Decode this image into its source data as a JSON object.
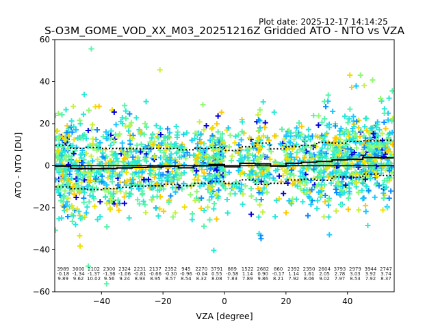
{
  "chart_data": {
    "type": "scatter",
    "title": "S-O3M_GOME_VOD_XX_M03_20251216Z Gridded ATO - NTO vs VZA",
    "plot_date_label": "Plot date: 2025-12-17 14:14:25",
    "xlabel": "VZA [degree]",
    "ylabel": "ATO - NTO [DU]",
    "xlim": [
      -55.2,
      55.2
    ],
    "ylim": [
      -60,
      60
    ],
    "xticks": [
      -40,
      -20,
      0,
      20,
      40
    ],
    "xtick_labels": [
      "−40",
      "−20",
      "0",
      "20",
      "40"
    ],
    "yticks": [
      -60,
      -40,
      -20,
      0,
      20,
      40,
      60
    ],
    "ytick_labels": [
      "−60",
      "−40",
      "−20",
      "0",
      "20",
      "40",
      "60"
    ],
    "grid": false,
    "marker": "plus",
    "colormap": [
      "#0000d8",
      "#0a8cff",
      "#18c8ff",
      "#28e8d8",
      "#58f4a8",
      "#90f870",
      "#c8f040",
      "#f0e000",
      "#ffc800"
    ],
    "zero_line": 0,
    "bin_width": 5,
    "bins": {
      "centers": [
        -52.5,
        -47.5,
        -42.5,
        -37.5,
        -32.5,
        -27.5,
        -22.5,
        -17.5,
        -12.5,
        -7.5,
        -2.5,
        2.5,
        7.5,
        12.5,
        17.5,
        22.5,
        27.5,
        32.5,
        37.5,
        42.5,
        47.5,
        52.5
      ],
      "counts": [
        "3989",
        "3000",
        "2102",
        "2300",
        "2324",
        "2231",
        "2137",
        "2352",
        "945",
        "2270",
        "3791",
        "889",
        "1522",
        "2682",
        "860",
        "2392",
        "2350",
        "2604",
        "3793",
        "2979",
        "3944",
        "2747"
      ],
      "means": [
        "-0.18",
        "-1.34",
        "-1.37",
        "-1.36",
        "-1.06",
        "-0.81",
        "-0.66",
        "-0.30",
        "-0.96",
        "-0.04",
        "0.55",
        "-0.58",
        "1.14",
        "0.90",
        "-0.17",
        "1.14",
        "1.61",
        "2.05",
        "2.78",
        "3.03",
        "3.92",
        "3.74"
      ],
      "stds": [
        "9.89",
        "9.62",
        "10.02",
        "9.56",
        "9.24",
        "8.93",
        "8.95",
        "8.57",
        "8.54",
        "8.32",
        "8.08",
        "7.83",
        "7.89",
        "9.86",
        "8.21",
        "7.92",
        "8.06",
        "9.02",
        "7.97",
        "8.53",
        "7.92",
        "8.37"
      ]
    },
    "series": [
      {
        "name": "mean",
        "style": "solid-step",
        "color": "#000000"
      },
      {
        "name": "mean + std",
        "style": "dotted-step",
        "color": "#000000"
      },
      {
        "name": "mean - std",
        "style": "dotted-step",
        "color": "#000000"
      }
    ]
  }
}
